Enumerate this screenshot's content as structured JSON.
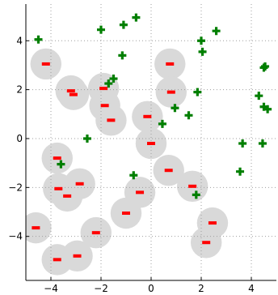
{
  "chart_data": {
    "type": "scatter",
    "title": "",
    "xlabel": "",
    "ylabel": "",
    "xlim": [
      -5.0,
      5.0
    ],
    "ylim": [
      -5.8,
      5.5
    ],
    "grid": true,
    "x_ticks": [
      -4,
      -2,
      0,
      2,
      4
    ],
    "y_ticks": [
      -4,
      -2,
      0,
      2,
      4
    ],
    "x_tick_labels": [
      "−4",
      "−2",
      "0",
      "2",
      "4"
    ],
    "y_tick_labels": [
      "−4",
      "−2",
      "0",
      "2",
      "4"
    ],
    "colors": {
      "region": "#d9d9d9",
      "red_marker": "#ff0000",
      "green_marker": "#007f00",
      "grid": "#9e9e9e"
    },
    "region_radius": 0.62,
    "series": [
      {
        "marker": "red-dash",
        "points": [
          [
            -4.2,
            3.05
          ],
          [
            -3.2,
            1.95
          ],
          [
            -3.1,
            1.8
          ],
          [
            -1.9,
            2.05
          ],
          [
            -1.85,
            1.35
          ],
          [
            -1.6,
            0.75
          ],
          [
            -0.15,
            0.9
          ],
          [
            0.0,
            -0.2
          ],
          [
            0.75,
            3.05
          ],
          [
            0.8,
            1.9
          ],
          [
            0.7,
            -1.3
          ],
          [
            -3.75,
            -0.8
          ],
          [
            -3.7,
            -2.05
          ],
          [
            -3.35,
            -2.35
          ],
          [
            -2.85,
            -1.85
          ],
          [
            -0.45,
            -2.2
          ],
          [
            -1.0,
            -3.05
          ],
          [
            1.65,
            -1.95
          ],
          [
            2.45,
            -3.45
          ],
          [
            2.2,
            -4.25
          ],
          [
            -2.2,
            -3.85
          ],
          [
            -4.6,
            -3.65
          ],
          [
            -3.75,
            -4.95
          ],
          [
            -2.95,
            -4.8
          ]
        ]
      },
      {
        "marker": "green-plus",
        "points": [
          [
            -4.5,
            4.05
          ],
          [
            -2.0,
            4.45
          ],
          [
            -1.1,
            4.65
          ],
          [
            -0.6,
            4.95
          ],
          [
            -1.15,
            3.4
          ],
          [
            -1.5,
            2.45
          ],
          [
            -1.7,
            2.25
          ],
          [
            2.0,
            4.0
          ],
          [
            2.6,
            4.4
          ],
          [
            2.05,
            3.55
          ],
          [
            4.5,
            2.9
          ],
          [
            4.55,
            2.95
          ],
          [
            1.85,
            1.9
          ],
          [
            1.5,
            0.95
          ],
          [
            0.95,
            1.25
          ],
          [
            0.45,
            0.6
          ],
          [
            4.3,
            1.75
          ],
          [
            4.5,
            1.3
          ],
          [
            4.65,
            1.2
          ],
          [
            -2.55,
            0.0
          ],
          [
            -3.6,
            -1.05
          ],
          [
            3.65,
            -0.2
          ],
          [
            4.45,
            -0.2
          ],
          [
            3.55,
            -1.35
          ],
          [
            1.8,
            -2.3
          ],
          [
            -0.7,
            -1.5
          ]
        ]
      }
    ]
  }
}
